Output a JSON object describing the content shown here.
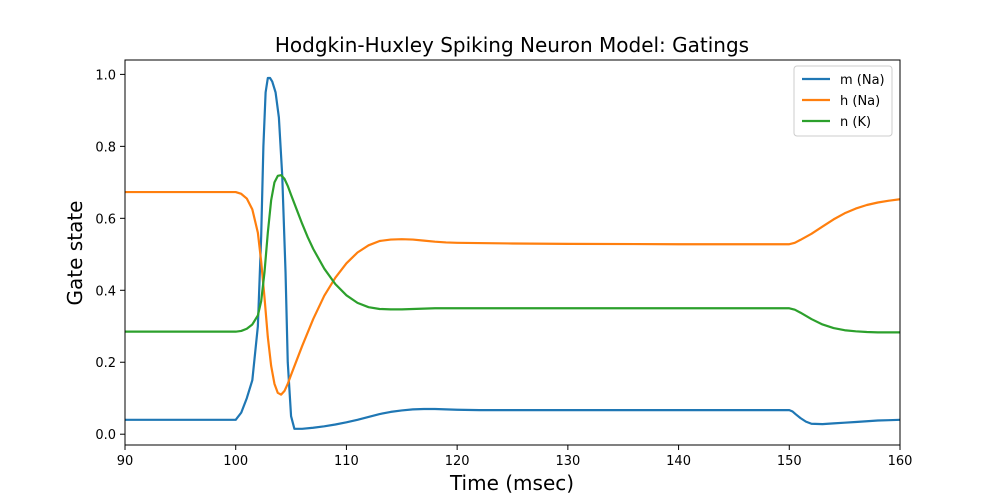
{
  "chart_data": {
    "type": "line",
    "title": "Hodgkin-Huxley Spiking Neuron Model: Gatings",
    "xlabel": "Time (msec)",
    "ylabel": "Gate state",
    "xlim": [
      90,
      160
    ],
    "ylim": [
      -0.03,
      1.04
    ],
    "xticks": [
      90,
      100,
      110,
      120,
      130,
      140,
      150,
      160
    ],
    "xtick_labels": [
      "90",
      "100",
      "110",
      "120",
      "130",
      "140",
      "150",
      "160"
    ],
    "yticks": [
      0.0,
      0.2,
      0.4,
      0.6,
      0.8,
      1.0
    ],
    "ytick_labels": [
      "0.0",
      "0.2",
      "0.4",
      "0.6",
      "0.8",
      "1.0"
    ],
    "grid": false,
    "legend_position": "top-right",
    "series": [
      {
        "name": "m (Na)",
        "color": "#1f77b4",
        "x": [
          90,
          100,
          100.5,
          101,
          101.5,
          102,
          102.3,
          102.5,
          102.7,
          102.9,
          103.1,
          103.3,
          103.6,
          103.9,
          104.2,
          104.5,
          104.7,
          105.0,
          105.3,
          106,
          107,
          108,
          109,
          110,
          111,
          112,
          113,
          114,
          115,
          116,
          117,
          118,
          119,
          120,
          122,
          125,
          130,
          140,
          150,
          150.3,
          150.6,
          151,
          151.5,
          152,
          153,
          154,
          155,
          156,
          157,
          158,
          159,
          160
        ],
        "y": [
          0.04,
          0.04,
          0.06,
          0.1,
          0.15,
          0.3,
          0.55,
          0.8,
          0.95,
          0.99,
          0.99,
          0.98,
          0.95,
          0.88,
          0.72,
          0.45,
          0.2,
          0.05,
          0.015,
          0.015,
          0.018,
          0.022,
          0.027,
          0.033,
          0.04,
          0.048,
          0.056,
          0.062,
          0.066,
          0.069,
          0.07,
          0.07,
          0.069,
          0.068,
          0.067,
          0.067,
          0.067,
          0.067,
          0.067,
          0.063,
          0.055,
          0.045,
          0.035,
          0.029,
          0.028,
          0.03,
          0.032,
          0.034,
          0.036,
          0.038,
          0.039,
          0.04
        ]
      },
      {
        "name": "h (Na)",
        "color": "#ff7f0e",
        "x": [
          90,
          100,
          100.5,
          101,
          101.5,
          102,
          102.3,
          102.6,
          102.9,
          103.2,
          103.5,
          103.8,
          104.1,
          104.4,
          104.7,
          105,
          105.5,
          106,
          107,
          108,
          109,
          110,
          111,
          112,
          113,
          114,
          115,
          116,
          117,
          118,
          119,
          120,
          125,
          130,
          140,
          150,
          150.5,
          151,
          152,
          153,
          154,
          155,
          156,
          157,
          158,
          159,
          160
        ],
        "y": [
          0.673,
          0.673,
          0.668,
          0.655,
          0.625,
          0.56,
          0.48,
          0.38,
          0.27,
          0.19,
          0.14,
          0.115,
          0.11,
          0.12,
          0.14,
          0.165,
          0.205,
          0.245,
          0.32,
          0.385,
          0.435,
          0.475,
          0.505,
          0.525,
          0.537,
          0.541,
          0.542,
          0.541,
          0.538,
          0.535,
          0.533,
          0.532,
          0.53,
          0.529,
          0.528,
          0.528,
          0.532,
          0.54,
          0.557,
          0.577,
          0.597,
          0.614,
          0.627,
          0.637,
          0.644,
          0.649,
          0.653
        ]
      },
      {
        "name": "n (K)",
        "color": "#2ca02c",
        "x": [
          90,
          100,
          100.5,
          101,
          101.5,
          102,
          102.3,
          102.6,
          102.9,
          103.2,
          103.5,
          103.8,
          104.1,
          104.4,
          104.7,
          105,
          105.5,
          106,
          106.5,
          107,
          108,
          109,
          110,
          111,
          112,
          113,
          114,
          115,
          116,
          117,
          118,
          119,
          120,
          125,
          130,
          140,
          150,
          150.5,
          151,
          152,
          153,
          154,
          155,
          156,
          157,
          158,
          159,
          160
        ],
        "y": [
          0.285,
          0.285,
          0.287,
          0.293,
          0.305,
          0.33,
          0.37,
          0.45,
          0.56,
          0.65,
          0.7,
          0.718,
          0.72,
          0.71,
          0.69,
          0.665,
          0.625,
          0.585,
          0.548,
          0.515,
          0.46,
          0.417,
          0.386,
          0.365,
          0.353,
          0.348,
          0.347,
          0.347,
          0.348,
          0.349,
          0.35,
          0.35,
          0.35,
          0.35,
          0.35,
          0.35,
          0.35,
          0.346,
          0.338,
          0.32,
          0.305,
          0.295,
          0.289,
          0.286,
          0.284,
          0.283,
          0.283,
          0.283
        ]
      }
    ]
  }
}
